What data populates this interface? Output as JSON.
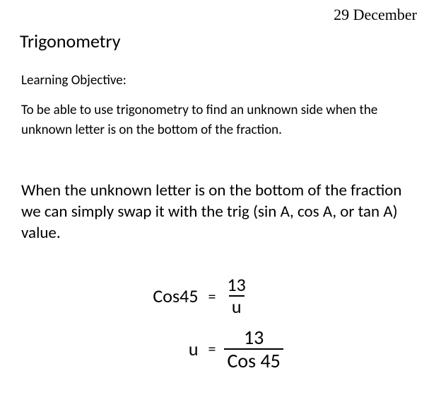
{
  "date": "29 December",
  "title": "Trigonometry",
  "lo_heading": "Learning Objective:",
  "lo_body": "To be able to use trigonometry to find an unknown side when the unknown letter is on the bottom of the fraction.",
  "explain": "When the unknown letter is on the bottom of the fraction we can simply swap it with the trig (sin A, cos A, or tan A) value.",
  "equations": {
    "eq1": {
      "left": "Cos45",
      "equals": "=",
      "num": "13",
      "den": "u"
    },
    "eq2": {
      "left": "u",
      "equals": "=",
      "num": "13",
      "den": "Cos 45"
    }
  },
  "style": {
    "background_color": "#ffffff",
    "text_color": "#000000",
    "date_font": "serif",
    "body_font": "sans-serif",
    "title_fontsize": 26,
    "lo_fontsize": 19,
    "explain_fontsize": 23,
    "eq_fontsize": 26,
    "fraction_bar_color": "#000000"
  }
}
